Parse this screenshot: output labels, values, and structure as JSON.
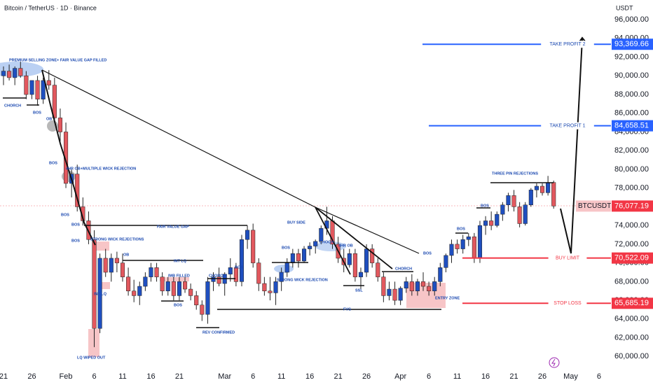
{
  "chart_data": {
    "type": "candlestick",
    "title": "Bitcoin / TetherUS · 1D · Binance",
    "y_axis_label": "USDT",
    "up_color": "#1f4fbf",
    "down_color": "#e2585e",
    "categories": [
      null,
      "21",
      null,
      null,
      null,
      null,
      "26",
      null,
      null,
      null,
      null,
      null,
      "Feb",
      null,
      null,
      null,
      null,
      "6",
      null,
      null,
      null,
      null,
      "11",
      null,
      null,
      null,
      null,
      "16",
      null,
      null,
      null,
      null,
      "21",
      null,
      null,
      null,
      null,
      null,
      null,
      null,
      "Mar",
      null,
      null,
      null,
      null,
      "6",
      null,
      null,
      null,
      null,
      "11",
      null,
      null,
      null,
      null,
      "16",
      null,
      null,
      null,
      null,
      "21",
      null,
      null,
      null,
      null,
      "26",
      null,
      null,
      null,
      null,
      null,
      "Apr",
      null,
      null,
      null,
      null,
      "6",
      null,
      null,
      null,
      null,
      "11",
      null,
      null,
      null,
      null,
      "16",
      null,
      null,
      null,
      null,
      "21",
      null,
      null,
      null,
      null,
      "26",
      null,
      null,
      null,
      null,
      "May",
      null,
      null,
      null,
      null,
      "6",
      null,
      null
    ],
    "open": [
      89500,
      90000,
      90500,
      89800,
      90800,
      90000,
      88000,
      89500,
      87500,
      89500,
      89000,
      85500,
      84000,
      78500,
      79500,
      76000,
      74500,
      72500,
      63000,
      70500,
      69000,
      70500,
      70000,
      68500,
      67000,
      66500,
      67500,
      68500,
      69500,
      68500,
      67000,
      68000,
      66500,
      68000,
      67200,
      66500,
      65500,
      64500,
      68000,
      68500,
      67800,
      68800,
      69500,
      68000,
      72500,
      73500,
      70000,
      67800,
      67000,
      66800,
      68000,
      69000,
      70000,
      71000,
      70200,
      71500,
      71800,
      72300,
      73700,
      74500,
      72000,
      70500,
      69800,
      71000,
      68500,
      69000,
      71500,
      70000,
      68500,
      66500,
      67200,
      66000,
      67300,
      68000,
      67000,
      68000,
      67500,
      67000,
      68000,
      69500,
      70800,
      72000,
      71500,
      72500,
      72800,
      70500,
      74000,
      74500,
      74000,
      75200,
      76200,
      77200,
      76000,
      74200,
      76200,
      77800,
      78200,
      77500,
      78600,
      null,
      null,
      null,
      null,
      null,
      null,
      null,
      null,
      null,
      null
    ],
    "high": [
      90500,
      91000,
      91200,
      91000,
      91500,
      90500,
      89500,
      90000,
      89800,
      90600,
      89800,
      86500,
      85000,
      80000,
      80500,
      77000,
      75500,
      73500,
      71000,
      71500,
      71000,
      71200,
      71000,
      69500,
      68200,
      68000,
      69000,
      70000,
      70000,
      69000,
      68500,
      68500,
      68500,
      68500,
      67800,
      67000,
      66000,
      68500,
      69000,
      69500,
      69000,
      70500,
      70000,
      73000,
      74000,
      74200,
      70500,
      68500,
      68500,
      68500,
      69500,
      70500,
      71500,
      71500,
      71800,
      72200,
      72500,
      74000,
      76000,
      75000,
      72800,
      71500,
      71500,
      71500,
      69500,
      72000,
      72000,
      70500,
      69000,
      68000,
      68000,
      67500,
      68500,
      68800,
      68300,
      69000,
      68000,
      68500,
      70000,
      71000,
      72500,
      72500,
      73000,
      73200,
      73200,
      74500,
      75000,
      75500,
      75500,
      76500,
      77500,
      77800,
      76500,
      76500,
      78000,
      78500,
      78500,
      79300,
      78800,
      null,
      null,
      null,
      null,
      null,
      null,
      null,
      null,
      null,
      null
    ],
    "low": [
      88000,
      89000,
      89500,
      89000,
      89800,
      87500,
      87500,
      86800,
      87000,
      88500,
      85000,
      83000,
      78000,
      77000,
      75500,
      74000,
      72000,
      61000,
      62500,
      68500,
      68000,
      69000,
      68000,
      66500,
      65800,
      65500,
      67000,
      68000,
      68000,
      66500,
      66500,
      66000,
      66000,
      66800,
      66000,
      65000,
      63800,
      63500,
      67000,
      67500,
      66500,
      68000,
      67500,
      67500,
      71500,
      69500,
      67000,
      66500,
      66000,
      65500,
      67000,
      68500,
      69500,
      69500,
      70000,
      70800,
      71000,
      72000,
      73000,
      71500,
      70000,
      69000,
      69500,
      68000,
      67200,
      68500,
      69500,
      68000,
      65800,
      66000,
      65500,
      65500,
      66800,
      66500,
      66500,
      67000,
      66500,
      66500,
      67500,
      69000,
      70000,
      71000,
      71000,
      71800,
      70000,
      70000,
      73000,
      73500,
      73800,
      74500,
      75500,
      75500,
      73800,
      74000,
      76000,
      77000,
      77200,
      77200,
      75800,
      null,
      null,
      null,
      null,
      null,
      null,
      null,
      null,
      null,
      null
    ],
    "close": [
      90000,
      90500,
      89800,
      90800,
      90000,
      88000,
      89500,
      87500,
      89500,
      89000,
      85500,
      84000,
      78500,
      79500,
      76000,
      74500,
      72500,
      63000,
      70500,
      69000,
      70500,
      70000,
      68500,
      67000,
      66500,
      67500,
      68500,
      69500,
      68500,
      67000,
      68000,
      66500,
      68000,
      67200,
      66500,
      65500,
      64500,
      68000,
      68500,
      67800,
      68800,
      69500,
      68000,
      72500,
      73500,
      70000,
      67800,
      67000,
      66800,
      68000,
      69000,
      70000,
      71000,
      70200,
      71500,
      71800,
      72300,
      73700,
      74500,
      72000,
      70500,
      69800,
      71000,
      68500,
      69000,
      71500,
      70000,
      68500,
      66500,
      67200,
      66000,
      67300,
      68000,
      67000,
      68000,
      67500,
      67000,
      68000,
      69500,
      70800,
      72000,
      71500,
      72500,
      72800,
      70500,
      74000,
      74500,
      74000,
      75200,
      76200,
      77200,
      76000,
      74200,
      76200,
      77800,
      78200,
      77500,
      78600,
      76077.19,
      null,
      null,
      null,
      null,
      null,
      null,
      null,
      null,
      null,
      null
    ],
    "ylim": [
      58600,
      98100
    ],
    "yticks": [
      {
        "value": 60000,
        "label": "60,000.00"
      },
      {
        "value": 62000,
        "label": "62,000.00"
      },
      {
        "value": 64000,
        "label": "64,000.00"
      },
      {
        "value": 66000,
        "label": "66,000.00"
      },
      {
        "value": 68000,
        "label": "68,000.00"
      },
      {
        "value": 70000,
        "label": "70,000.00"
      },
      {
        "value": 72000,
        "label": "72,000.00"
      },
      {
        "value": 74000,
        "label": "74,000.00"
      },
      {
        "value": 76000,
        "label": "76,000.00"
      },
      {
        "value": 78000,
        "label": "78,000.00"
      },
      {
        "value": 80000,
        "label": "80,000.00"
      },
      {
        "value": 82000,
        "label": "82,000.00"
      },
      {
        "value": 84000,
        "label": "84,000.00"
      },
      {
        "value": 86000,
        "label": "86,000.00"
      },
      {
        "value": 88000,
        "label": "88,000.00"
      },
      {
        "value": 90000,
        "label": "90,000.00"
      },
      {
        "value": 92000,
        "label": "92,000.00"
      },
      {
        "value": 94000,
        "label": "94,000.00"
      },
      {
        "value": 96000,
        "label": "96,000.00"
      }
    ],
    "levels": [
      {
        "name": "TAKE PROFIT 2",
        "value": 93369.66,
        "label": "93,369.66",
        "color": "#2962ff"
      },
      {
        "name": "TAKE PROFIT 1",
        "value": 84658.51,
        "label": "84,658.51",
        "color": "#2962ff"
      },
      {
        "name": "BTCUSDT",
        "value": 76077.19,
        "label": "76,077.19",
        "color": "#f23645"
      },
      {
        "name": "BUY LIMIT",
        "value": 70522.09,
        "label": "70,522.09",
        "color": "#f23645"
      },
      {
        "name": "STOP LOSS",
        "value": 65685.19,
        "label": "65,685.19",
        "color": "#f23645"
      }
    ],
    "annotations": [
      "PREMIUM SELLING ZONE+ FAIR VALUE GAP FILLED",
      "CHORCH",
      "BOS",
      "OB",
      "BOS",
      "4HR OB+MULTIPLE WICK REJECTION",
      "BOS",
      "BOS",
      "BOS",
      "STRONG WICK REJECTIONS",
      "FAIR VALUE GAP",
      "OB",
      "INT LQ",
      "INT LQ",
      "IMB FILLED",
      "BOS",
      "CHORCH",
      "BOS",
      "REV CONFIRMED",
      "LQ WIPED OUT",
      "BOS",
      "BUY SIDE",
      "CHOCH",
      "4HR OB",
      "STRONG WICK REJECTION",
      "SSL",
      "FVG",
      "CHORCH",
      "BOS",
      "ENTRY ZONE",
      "BOS",
      "BOS",
      "THREE PIN REJECTIONS"
    ]
  }
}
